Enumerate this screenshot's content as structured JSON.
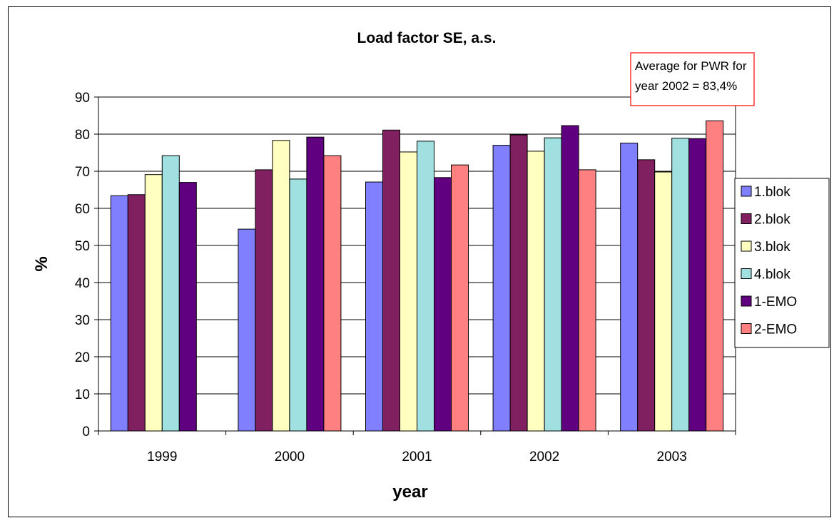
{
  "chart_data": {
    "type": "bar",
    "title": "Load factor SE, a.s.",
    "xlabel": "year",
    "ylabel": "%",
    "ylim": [
      0,
      90
    ],
    "ytick_step": 10,
    "yticks": [
      "0",
      "10",
      "20",
      "30",
      "40",
      "50",
      "60",
      "70",
      "80",
      "90"
    ],
    "categories": [
      "1999",
      "2000",
      "2001",
      "2002",
      "2003"
    ],
    "grid": true,
    "legend_position": "right",
    "series": [
      {
        "name": "1.blok",
        "color": "#8080ff",
        "values": [
          63.4,
          54.4,
          67.1,
          77.0,
          77.6
        ]
      },
      {
        "name": "2.blok",
        "color": "#802060",
        "values": [
          63.7,
          70.4,
          81.1,
          79.8,
          73.1
        ]
      },
      {
        "name": "3.blok",
        "color": "#ffffc0",
        "values": [
          69.1,
          78.3,
          75.2,
          75.4,
          69.8
        ]
      },
      {
        "name": "4.blok",
        "color": "#a0e0e0",
        "values": [
          74.2,
          67.9,
          78.1,
          79.0,
          78.9
        ]
      },
      {
        "name": "1-EMO",
        "color": "#600080",
        "values": [
          67.0,
          79.2,
          68.3,
          82.3,
          78.8
        ]
      },
      {
        "name": "2-EMO",
        "color": "#ff8080",
        "values": [
          null,
          74.2,
          71.7,
          70.4,
          83.6
        ]
      }
    ],
    "annotation": {
      "lines": [
        "Average for PWR for",
        "year 2002 = 83,4%"
      ],
      "border_color": "#ff0000"
    }
  }
}
